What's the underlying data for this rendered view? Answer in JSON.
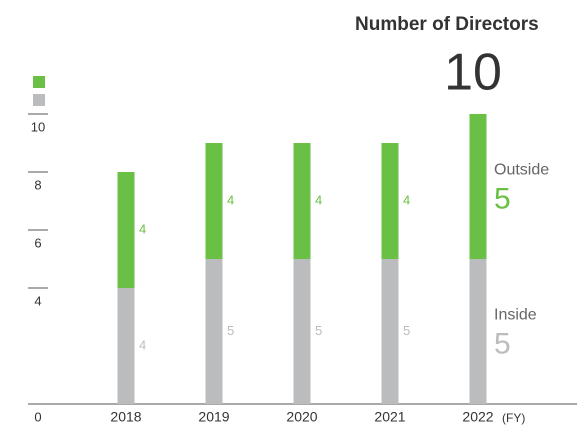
{
  "chart_data": {
    "type": "stacked_bar",
    "title": "Number of Directors",
    "total_label": "10",
    "categories": [
      "2018",
      "2019",
      "2020",
      "2021",
      "2022"
    ],
    "x_unit": "(FY)",
    "series": [
      {
        "name": "Inside",
        "color": "#bbbcbe",
        "values": [
          4,
          5,
          5,
          5,
          5
        ]
      },
      {
        "name": "Outside",
        "color": "#6abf45",
        "values": [
          4,
          4,
          4,
          4,
          5
        ]
      }
    ],
    "ylim": [
      0,
      10
    ],
    "yticks": [
      0,
      4,
      6,
      8,
      10
    ]
  }
}
